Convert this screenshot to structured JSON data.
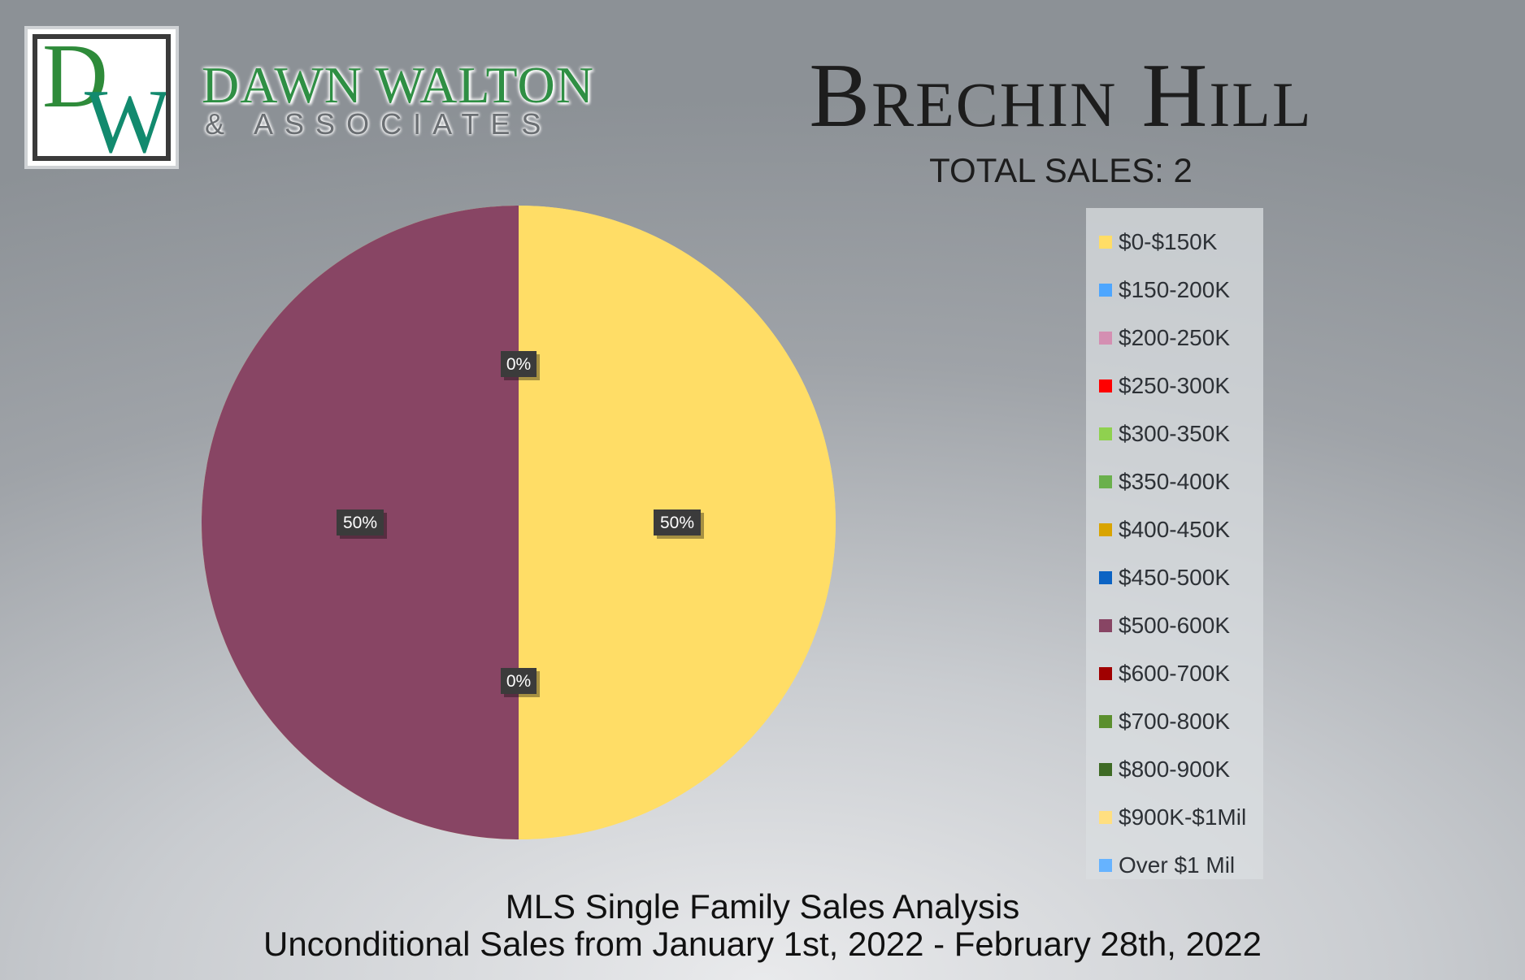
{
  "brand": {
    "logo_letters": "DW",
    "name": "DAWN WALTON",
    "subtitle": "& ASSOCIATES"
  },
  "header": {
    "title": "Brechin Hill",
    "total_sales": "TOTAL SALES: 2"
  },
  "footer": {
    "line1": "MLS Single Family Sales Analysis",
    "line2": "Unconditional Sales from January 1st, 2022 - February 28th, 2022"
  },
  "chart_data": {
    "type": "pie",
    "title": "",
    "legend_position": "right",
    "data_label_format": "percent",
    "categories": [
      "$0-$150K",
      "$150-200K",
      "$200-250K",
      "$250-300K",
      "$300-350K",
      "$350-400K",
      "$400-450K",
      "$450-500K",
      "$500-600K",
      "$600-700K",
      "$700-800K",
      "$800-900K",
      "$900K-$1Mil",
      "Over $1 Mil"
    ],
    "colors": [
      "#ffdd66",
      "#4da6ff",
      "#d48fb2",
      "#ff0000",
      "#8fd14f",
      "#6ab04c",
      "#d9a400",
      "#0b63c4",
      "#884564",
      "#a00000",
      "#5b8f2e",
      "#3e6a24",
      "#ffdf80",
      "#66b3ff"
    ],
    "values": [
      1,
      0,
      0,
      0,
      0,
      0,
      0,
      0,
      1,
      0,
      0,
      0,
      0,
      0
    ],
    "slice_background": "#ffdf80",
    "data_labels": [
      {
        "text": "0%",
        "position": "top"
      },
      {
        "text": "50%",
        "position": "left"
      },
      {
        "text": "50%",
        "position": "right"
      },
      {
        "text": "0%",
        "position": "bottom"
      }
    ]
  }
}
